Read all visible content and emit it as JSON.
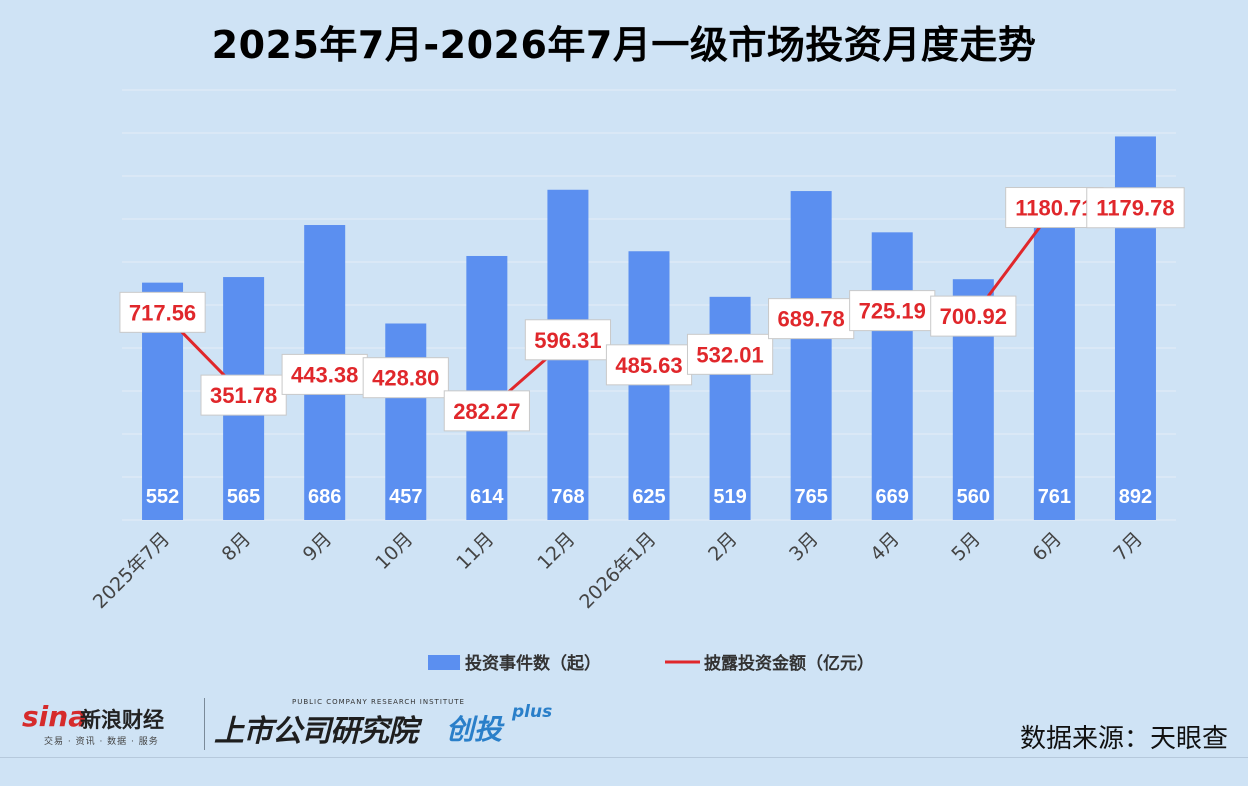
{
  "title": "2025年7月-2026年7月一级市场投资月度走势",
  "colors": {
    "bar": "#5b8ff0",
    "line": "#e0272b",
    "background": "#cfe3f5",
    "grid": "#e6eef6"
  },
  "chart_data": {
    "type": "bar",
    "title": "2025年7月-2026年7月一级市场投资月度走势",
    "categories": [
      "2025年7月",
      "8月",
      "9月",
      "10月",
      "11月",
      "12月",
      "2026年1月",
      "2月",
      "3月",
      "4月",
      "5月",
      "6月",
      "7月"
    ],
    "series": [
      {
        "name": "投资事件数（起）",
        "type": "bar",
        "values": [
          552,
          565,
          686,
          457,
          614,
          768,
          625,
          519,
          765,
          669,
          560,
          761,
          892
        ]
      },
      {
        "name": "披露投资金额（亿元）",
        "type": "line",
        "values": [
          717.56,
          351.78,
          443.38,
          428.8,
          282.27,
          596.31,
          485.63,
          532.01,
          689.78,
          725.19,
          700.92,
          1180.71,
          1179.78
        ]
      }
    ],
    "bar_labels": [
      "552",
      "565",
      "686",
      "457",
      "614",
      "768",
      "625",
      "519",
      "765",
      "669",
      "560",
      "761",
      "892"
    ],
    "line_labels": [
      "717.56",
      "351.78",
      "443.38",
      "428.80",
      "282.27",
      "596.31",
      "485.63",
      "532.01",
      "689.78",
      "725.19",
      "700.92",
      "1180.71",
      "1179.78"
    ],
    "grid": true,
    "legend_position": "bottom"
  },
  "legend": {
    "bar_label": "投资事件数（起）",
    "line_label": "披露投资金额（亿元）"
  },
  "footer": {
    "sina_logo": "sina",
    "sina_name": "新浪财经",
    "sina_tagline": "交易 · 资讯 · 数据 · 服务",
    "institute_en": "PUBLIC COMPANY RESEARCH INSTITUTE",
    "institute_cn": "上市公司研究院",
    "brand": "创投",
    "brand_plus": "plus",
    "source": "数据来源：天眼查"
  }
}
